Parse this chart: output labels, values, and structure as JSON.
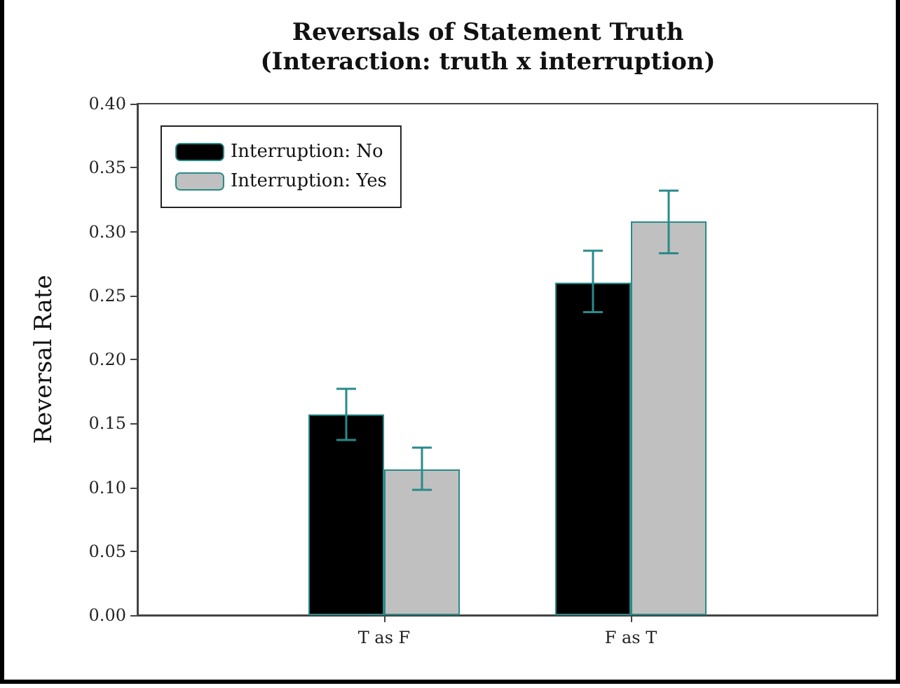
{
  "chart_data": {
    "type": "bar",
    "title": "Reversals of Statement Truth\n(Interaction: truth x interruption)",
    "ylabel": "Reversal Rate",
    "categories": [
      "T as F",
      "F as T"
    ],
    "series": [
      {
        "name": "Interruption: No",
        "color": "#000000",
        "values": [
          0.157,
          0.26
        ],
        "errors": [
          [
            0.137,
            0.177
          ],
          [
            0.237,
            0.285
          ]
        ]
      },
      {
        "name": "Interruption: Yes",
        "color": "#c0c0c0",
        "values": [
          0.114,
          0.308
        ],
        "errors": [
          [
            0.098,
            0.131
          ],
          [
            0.283,
            0.332
          ]
        ]
      }
    ],
    "ylim": [
      0,
      0.4
    ],
    "yticks": [
      {
        "value": 0,
        "label": "0.00"
      },
      {
        "value": 0.05,
        "label": "0.05"
      },
      {
        "value": 0.1,
        "label": "0.10"
      },
      {
        "value": 0.15,
        "label": "0.15"
      },
      {
        "value": 0.2,
        "label": "0.20"
      },
      {
        "value": 0.25,
        "label": "0.25"
      },
      {
        "value": 0.3,
        "label": "0.30"
      },
      {
        "value": 0.35,
        "label": "0.35"
      },
      {
        "value": 0.4,
        "label": "0.40"
      }
    ],
    "grid": false,
    "legend": "top left"
  }
}
